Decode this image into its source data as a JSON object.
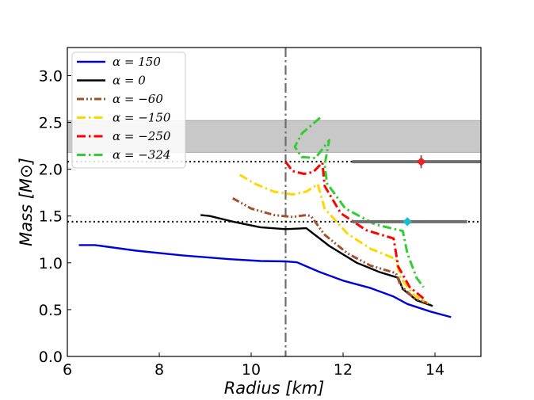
{
  "chart_data": {
    "type": "line",
    "xlabel": "Radius [km]",
    "ylabel": "Mass [M⊙]",
    "xlim": [
      6,
      15
    ],
    "ylim": [
      0,
      3.3
    ],
    "xticks": [
      6,
      8,
      10,
      12,
      14
    ],
    "xtick_labels": [
      "6",
      "8",
      "10",
      "12",
      "14"
    ],
    "yticks": [
      0.0,
      0.5,
      1.0,
      1.5,
      2.0,
      2.5,
      3.0
    ],
    "ytick_labels": [
      "0.0",
      "0.5",
      "1.0",
      "1.5",
      "2.0",
      "2.5",
      "3.0"
    ],
    "grid": false,
    "legend_position": "upper-left",
    "shaded_band": {
      "y_range": [
        2.18,
        2.52
      ],
      "color": "#c8c8c8"
    },
    "vertical_line": {
      "x": 10.75,
      "color": "#6e6e6e",
      "style": "dashdot"
    },
    "horizontal_lines": [
      {
        "y": 2.08,
        "color": "#000000",
        "style": "dotted"
      },
      {
        "y": 1.44,
        "color": "#000000",
        "style": "dotted"
      }
    ],
    "observations": [
      {
        "name": "pulsar-2.08",
        "x": 13.7,
        "y": 2.08,
        "x_err": [
          12.2,
          15.0
        ],
        "y_err": [
          2.01,
          2.15
        ],
        "color": "#e8222a",
        "bar_color": "#6e6e6e"
      },
      {
        "name": "pulsar-1.44",
        "x": 13.4,
        "y": 1.44,
        "x_err": [
          12.2,
          14.7
        ],
        "y_err": [
          1.41,
          1.47
        ],
        "color": "#1bbdcc",
        "bar_color": "#6e6e6e"
      }
    ],
    "series": [
      {
        "name": "α = 150",
        "color": "#0000dd",
        "dash": "solid",
        "points": [
          [
            6.25,
            1.19
          ],
          [
            6.6,
            1.19
          ],
          [
            7.5,
            1.13
          ],
          [
            8.5,
            1.08
          ],
          [
            9.5,
            1.04
          ],
          [
            10.2,
            1.02
          ],
          [
            10.75,
            1.015
          ],
          [
            11.0,
            1.005
          ],
          [
            11.5,
            0.9
          ],
          [
            12.0,
            0.81
          ],
          [
            12.6,
            0.73
          ],
          [
            13.1,
            0.64
          ],
          [
            13.4,
            0.56
          ],
          [
            13.9,
            0.48
          ],
          [
            14.35,
            0.42
          ]
        ]
      },
      {
        "name": "α = 0",
        "color": "#000000",
        "dash": "solid",
        "points": [
          [
            8.9,
            1.51
          ],
          [
            9.1,
            1.5
          ],
          [
            9.6,
            1.44
          ],
          [
            10.2,
            1.38
          ],
          [
            10.75,
            1.36
          ],
          [
            11.2,
            1.37
          ],
          [
            11.7,
            1.18
          ],
          [
            12.3,
            1.0
          ],
          [
            12.8,
            0.9
          ],
          [
            13.2,
            0.84
          ],
          [
            13.3,
            0.72
          ],
          [
            13.6,
            0.6
          ],
          [
            13.95,
            0.54
          ]
        ]
      },
      {
        "name": "α = −60",
        "color": "#a0522d",
        "dash": "dashdotdot",
        "points": [
          [
            9.6,
            1.69
          ],
          [
            10.0,
            1.58
          ],
          [
            10.5,
            1.51
          ],
          [
            10.9,
            1.49
          ],
          [
            11.2,
            1.51
          ],
          [
            11.3,
            1.5
          ],
          [
            11.6,
            1.3
          ],
          [
            12.1,
            1.1
          ],
          [
            12.6,
            0.97
          ],
          [
            13.15,
            0.89
          ],
          [
            13.25,
            0.76
          ],
          [
            13.55,
            0.62
          ],
          [
            13.9,
            0.56
          ]
        ]
      },
      {
        "name": "α = −150",
        "color": "#ffd700",
        "dash": "dashdot",
        "points": [
          [
            9.75,
            1.94
          ],
          [
            10.1,
            1.84
          ],
          [
            10.5,
            1.76
          ],
          [
            10.9,
            1.73
          ],
          [
            11.2,
            1.76
          ],
          [
            11.45,
            1.84
          ],
          [
            11.6,
            1.58
          ],
          [
            12.1,
            1.31
          ],
          [
            12.6,
            1.15
          ],
          [
            13.15,
            1.04
          ],
          [
            13.25,
            0.84
          ],
          [
            13.55,
            0.65
          ],
          [
            13.85,
            0.57
          ]
        ]
      },
      {
        "name": "α = −250",
        "color": "#ff0000",
        "dash": "dashdot",
        "points": [
          [
            10.75,
            2.08
          ],
          [
            10.9,
            1.98
          ],
          [
            11.15,
            1.95
          ],
          [
            11.35,
            1.97
          ],
          [
            11.55,
            2.07
          ],
          [
            11.6,
            1.82
          ],
          [
            11.95,
            1.53
          ],
          [
            12.5,
            1.35
          ],
          [
            13.1,
            1.26
          ],
          [
            13.2,
            0.96
          ],
          [
            13.45,
            0.74
          ],
          [
            13.75,
            0.62
          ]
        ]
      },
      {
        "name": "α = −324",
        "color": "#33cc33",
        "dash": "dashdot",
        "points": [
          [
            11.5,
            2.55
          ],
          [
            11.1,
            2.38
          ],
          [
            10.95,
            2.24
          ],
          [
            11.1,
            2.13
          ],
          [
            11.4,
            2.12
          ],
          [
            11.7,
            2.31
          ],
          [
            11.6,
            2.05
          ],
          [
            11.65,
            1.85
          ],
          [
            12.05,
            1.58
          ],
          [
            12.7,
            1.41
          ],
          [
            13.3,
            1.34
          ],
          [
            13.4,
            1.1
          ],
          [
            13.6,
            0.84
          ],
          [
            13.75,
            0.74
          ]
        ]
      }
    ]
  }
}
